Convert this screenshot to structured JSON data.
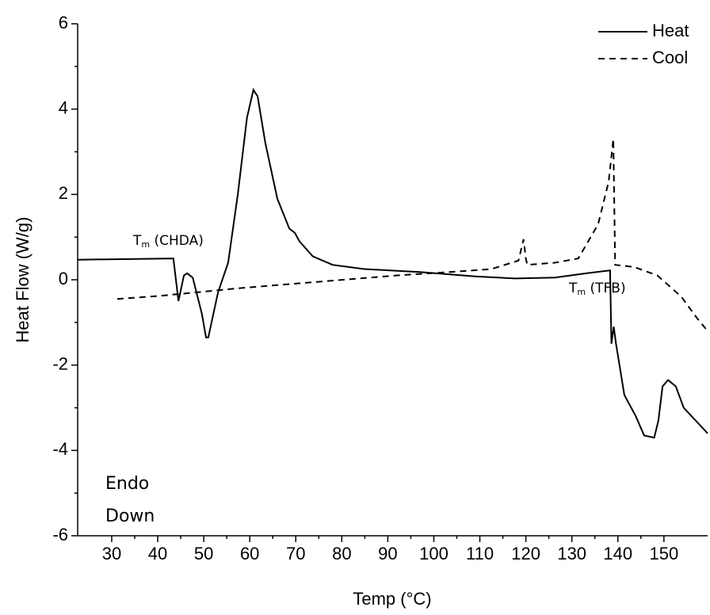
{
  "chart_data": {
    "type": "line",
    "x_label": "Temp (°C)",
    "y_label": "Heat Flow (W/g)",
    "xlim": [
      22.6,
      159.5
    ],
    "xticks": [
      30,
      40,
      50,
      60,
      70,
      80,
      90,
      100,
      110,
      120,
      130,
      140,
      150
    ],
    "ylim": [
      -6,
      6
    ],
    "yticks": [
      -6,
      -4,
      -2,
      0,
      2,
      4,
      6
    ],
    "legend": "top-right",
    "annotations": [
      {
        "main": "T",
        "sub": "m",
        "rest": " (CHDA)"
      },
      {
        "main": "T",
        "sub": "m",
        "rest": " (TFB)"
      }
    ],
    "note_lines": [
      "Endo",
      "Down"
    ],
    "series": [
      {
        "name": "Heat",
        "color": "#000000",
        "style": "solid",
        "x": [
          22.6,
          43.4,
          44.5,
          45.7,
          46.4,
          47.6,
          49.6,
          50.5,
          51.0,
          51.9,
          53.1,
          55.3,
          57.4,
          59.4,
          60.8,
          61.7,
          63.4,
          66.0,
          68.6,
          69.8,
          70.8,
          73.7,
          78.0,
          84.9,
          97.0,
          109.0,
          117.6,
          126.3,
          133.1,
          138.3,
          138.6,
          139.1,
          139.6,
          141.4,
          143.9,
          145.7,
          147.9,
          148.8,
          149.7,
          150.9,
          152.6,
          154.3,
          159.5
        ],
        "values": [
          0.47,
          0.5,
          -0.5,
          0.1,
          0.15,
          0.05,
          -0.8,
          -1.35,
          -1.35,
          -0.9,
          -0.3,
          0.4,
          2.0,
          3.8,
          4.45,
          4.3,
          3.2,
          1.9,
          1.2,
          1.1,
          0.9,
          0.55,
          0.35,
          0.25,
          0.18,
          0.08,
          0.03,
          0.05,
          0.15,
          0.22,
          -1.5,
          -1.1,
          -1.5,
          -2.7,
          -3.2,
          -3.65,
          -3.7,
          -3.3,
          -2.5,
          -2.35,
          -2.5,
          -3.0,
          -3.6
        ]
      },
      {
        "name": "Cool",
        "color": "#000000",
        "style": "dashed",
        "x": [
          31.2,
          40.2,
          57.4,
          74.6,
          91.8,
          102.1,
          112.5,
          118.4,
          119.5,
          120.0,
          120.3,
          126.3,
          131.4,
          135.7,
          138.0,
          139.0,
          139.4,
          143.5,
          148.6,
          153.8,
          157.2,
          159.5
        ],
        "values": [
          -0.45,
          -0.38,
          -0.2,
          -0.05,
          0.1,
          0.17,
          0.25,
          0.45,
          0.95,
          0.5,
          0.35,
          0.4,
          0.5,
          1.3,
          2.3,
          3.3,
          0.35,
          0.3,
          0.1,
          -0.4,
          -0.9,
          -1.2
        ]
      }
    ]
  }
}
